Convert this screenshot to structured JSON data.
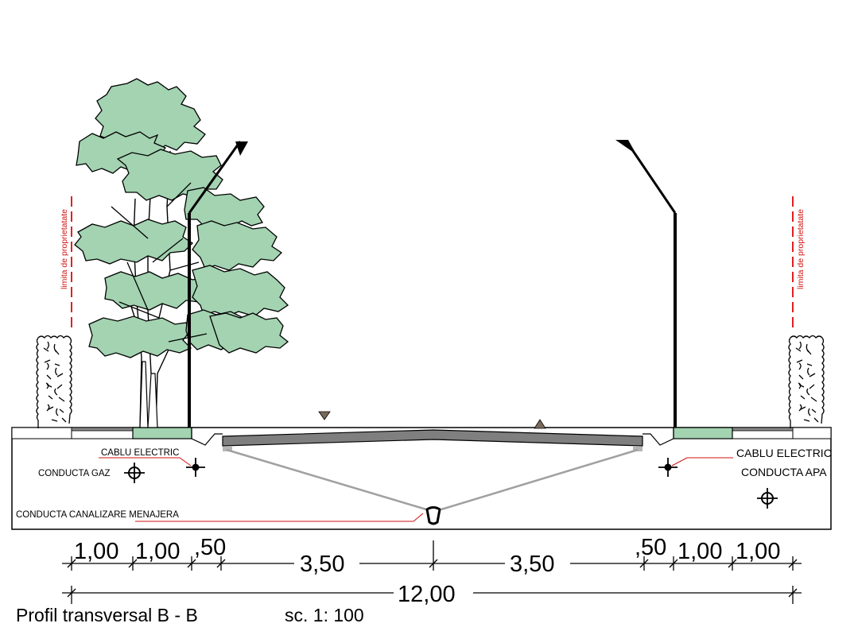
{
  "property_limit_label": "limita de proprietatate",
  "utilities": {
    "cablu_electric_left": "CABLU ELECTRIC",
    "cablu_electric_right": "CABLU ELECTRIC",
    "conducta_gaz": "CONDUCTA GAZ",
    "conducta_apa": "CONDUCTA  APA",
    "conducta_canalizare": "CONDUCTA CANALIZARE MENAJERA"
  },
  "dimensions": {
    "left_sidewalk_1": "1,00",
    "left_sidewalk_2": "1,00",
    "left_curb": ",50",
    "left_lane": "3,50",
    "right_lane": "3,50",
    "right_curb": ",50",
    "right_sidewalk_1": "1,00",
    "right_sidewalk_2": "1,00",
    "total": "12,00"
  },
  "title": "Profil transversal B - B",
  "scale": "sc. 1: 100",
  "colors": {
    "foliage": "#a3d3b1",
    "green_strip": "#a3d3b1",
    "road": "#808080",
    "limit_line": "#e02020",
    "triangle": "#7a6a5a"
  }
}
